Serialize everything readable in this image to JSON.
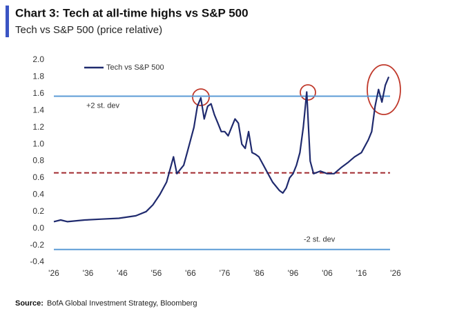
{
  "chart_data": {
    "type": "line",
    "title": "Chart 3: Tech at all-time highs vs S&P 500",
    "subtitle": "Tech vs S&P 500 (price relative)",
    "source": {
      "label": "Source:",
      "text": "BofA Global Investment Strategy, Bloomberg"
    },
    "x": [
      1926,
      1928,
      1930,
      1935,
      1940,
      1945,
      1950,
      1953,
      1955,
      1957,
      1959,
      1960,
      1961,
      1962,
      1963,
      1964,
      1965,
      1966,
      1967,
      1968,
      1969,
      1970,
      1971,
      1972,
      1973,
      1974,
      1975,
      1976,
      1977,
      1978,
      1979,
      1980,
      1981,
      1982,
      1983,
      1984,
      1985,
      1986,
      1988,
      1990,
      1992,
      1993,
      1994,
      1995,
      1996,
      1997,
      1998,
      1999,
      2000,
      2001,
      2002,
      2004,
      2006,
      2008,
      2010,
      2012,
      2014,
      2016,
      2018,
      2019,
      2020,
      2021,
      2022,
      2023,
      2024
    ],
    "series": [
      {
        "name": "Tech vs  S&P 500",
        "color": "#1f2a6e",
        "values": [
          0.08,
          0.1,
          0.08,
          0.1,
          0.11,
          0.12,
          0.15,
          0.2,
          0.28,
          0.4,
          0.55,
          0.7,
          0.85,
          0.65,
          0.7,
          0.75,
          0.9,
          1.05,
          1.2,
          1.45,
          1.55,
          1.3,
          1.45,
          1.48,
          1.35,
          1.25,
          1.15,
          1.15,
          1.1,
          1.2,
          1.3,
          1.25,
          1.0,
          0.95,
          1.15,
          0.9,
          0.88,
          0.85,
          0.7,
          0.55,
          0.45,
          0.42,
          0.48,
          0.6,
          0.65,
          0.75,
          0.9,
          1.2,
          1.62,
          0.8,
          0.65,
          0.68,
          0.65,
          0.65,
          0.72,
          0.78,
          0.85,
          0.9,
          1.05,
          1.15,
          1.45,
          1.65,
          1.5,
          1.7,
          1.8
        ]
      }
    ],
    "reference_lines": [
      {
        "value": 1.57,
        "label": "+2 st. dev",
        "color": "#5b9bd5"
      },
      {
        "value": 0.66,
        "color": "#a0282d",
        "dashed": true
      },
      {
        "value": -0.25,
        "label": "-2 st. dev",
        "color": "#5b9bd5"
      }
    ],
    "xlim": [
      1926,
      2026
    ],
    "xticks": [
      {
        "value": 1926,
        "label": "'26"
      },
      {
        "value": 1936,
        "label": "'36"
      },
      {
        "value": 1946,
        "label": "'46"
      },
      {
        "value": 1956,
        "label": "'56"
      },
      {
        "value": 1966,
        "label": "'66"
      },
      {
        "value": 1976,
        "label": "'76"
      },
      {
        "value": 1986,
        "label": "'86"
      },
      {
        "value": 1996,
        "label": "'96"
      },
      {
        "value": 2006,
        "label": "'06"
      },
      {
        "value": 2016,
        "label": "'16"
      },
      {
        "value": 2026,
        "label": "'26"
      }
    ],
    "ylim": [
      -0.4,
      2.0
    ],
    "yticks": [
      {
        "value": 2,
        "label": "2.0"
      },
      1.8,
      1.6,
      1.4,
      1.2,
      {
        "value": 1,
        "label": "1.0"
      },
      0.8,
      0.6,
      0.4,
      0.2,
      {
        "value": 0,
        "label": "0.0"
      },
      -0.2,
      -0.4
    ],
    "legend": "top-left"
  }
}
